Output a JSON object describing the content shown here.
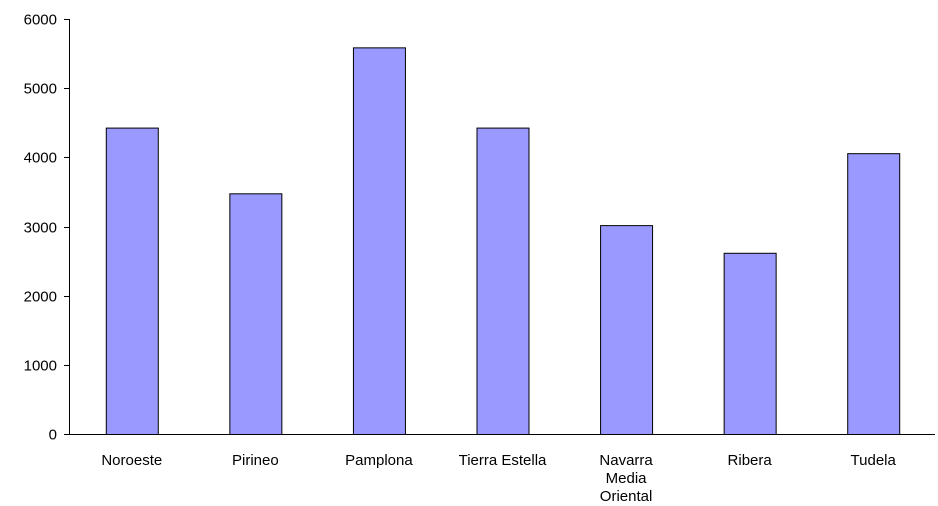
{
  "chart_data": {
    "type": "bar",
    "categories": [
      "Noroeste",
      "Pirineo",
      "Pamplona",
      "Tierra Estella",
      "Navarra Media Oriental",
      "Ribera",
      "Tudela"
    ],
    "category_label_lines": [
      [
        "Noroeste"
      ],
      [
        "Pirineo"
      ],
      [
        "Pamplona"
      ],
      [
        "Tierra Estella"
      ],
      [
        "Navarra",
        "Media",
        "Oriental"
      ],
      [
        "Ribera"
      ],
      [
        "Tudela"
      ]
    ],
    "values": [
      4430,
      3480,
      5590,
      4430,
      3020,
      2620,
      4060
    ],
    "title": "",
    "xlabel": "",
    "ylabel": "",
    "ylim": [
      0,
      6000
    ],
    "yticks": [
      0,
      1000,
      2000,
      3000,
      4000,
      5000,
      6000
    ],
    "grid": false,
    "legend": "none",
    "bar_color": "#9999ff"
  }
}
